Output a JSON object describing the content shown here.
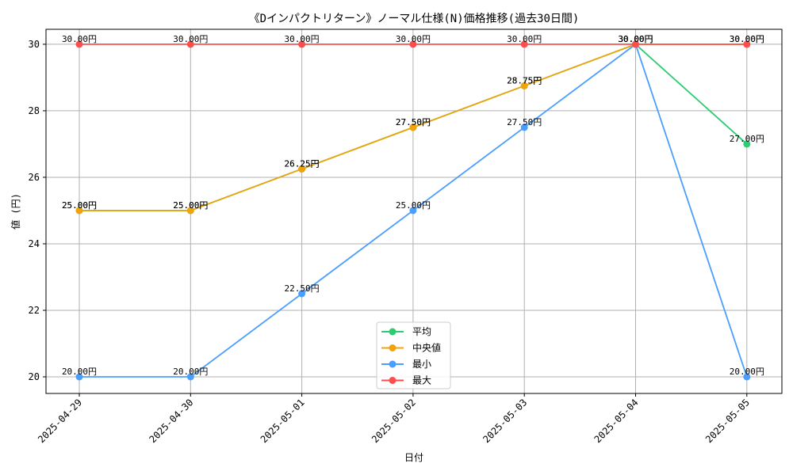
{
  "chart_data": {
    "type": "line",
    "title": "《Dインパクトリターン》ノーマル仕様(N)価格推移(過去30日間)",
    "xlabel": "日付",
    "ylabel": "値 (円)",
    "categories": [
      "2025-04-29",
      "2025-04-30",
      "2025-05-01",
      "2025-05-02",
      "2025-05-03",
      "2025-05-04",
      "2025-05-05"
    ],
    "ylim": [
      19.5,
      30.45
    ],
    "yticks": [
      20,
      22,
      24,
      26,
      28,
      30
    ],
    "grid": true,
    "legend_position": "bottom-center",
    "value_suffix": "円",
    "series": [
      {
        "name": "平均",
        "color": "#2ecc71",
        "values": [
          25.0,
          25.0,
          26.25,
          27.5,
          28.75,
          30.0,
          27.0
        ]
      },
      {
        "name": "中央値",
        "color": "#f0a30a",
        "values": [
          25.0,
          25.0,
          26.25,
          27.5,
          28.75,
          30.0,
          30.0
        ]
      },
      {
        "name": "最小",
        "color": "#4a9eff",
        "values": [
          20.0,
          20.0,
          22.5,
          25.0,
          27.5,
          30.0,
          20.0
        ]
      },
      {
        "name": "最大",
        "color": "#ff4d4d",
        "values": [
          30.0,
          30.0,
          30.0,
          30.0,
          30.0,
          30.0,
          30.0
        ]
      }
    ]
  }
}
